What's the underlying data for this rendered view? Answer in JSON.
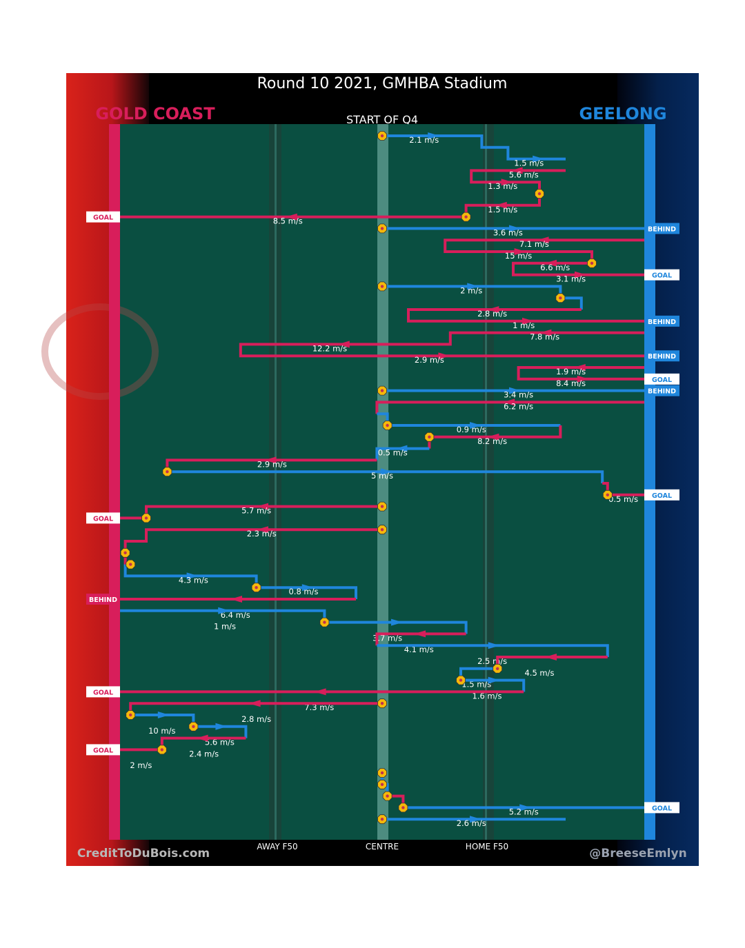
{
  "chart_data": {
    "type": "flow",
    "title": "Round 10 2021, GMHBA Stadium",
    "subtitle": "START OF Q4",
    "home_team": "GOLD COAST",
    "away_team": "GEELONG",
    "colors": {
      "gold_coast": "#d81e5b",
      "geelong": "#1f86dc",
      "field": "#0a4f41",
      "stoppage": "#f5b90a"
    },
    "x_axis": {
      "range": [
        0,
        100
      ],
      "labels": [
        "AWAY F50",
        "CENTRE",
        "HOME F50"
      ],
      "label_positions": [
        30,
        50,
        70
      ]
    },
    "sequences": [
      {
        "team": "geelong",
        "points": [
          [
            50,
            0
          ],
          [
            69,
            0
          ],
          [
            69,
            1
          ],
          [
            74,
            1
          ],
          [
            74,
            2
          ],
          [
            85,
            2
          ]
        ],
        "label": "2.1 m/s",
        "label_at": [
          58,
          0
        ],
        "extra_labels": [
          [
            "1.5 m/s",
            78,
            2
          ]
        ],
        "start": "stoppage"
      },
      {
        "team": "gold_coast",
        "points": [
          [
            85,
            3
          ],
          [
            67,
            3
          ],
          [
            67,
            4
          ],
          [
            80,
            4
          ],
          [
            80,
            5
          ]
        ],
        "label": "5.6 m/s",
        "label_at": [
          77,
          3
        ],
        "extra_labels": [
          [
            "1.3 m/s",
            73,
            4
          ]
        ],
        "end": "stoppage"
      },
      {
        "team": "gold_coast",
        "points": [
          [
            80,
            5
          ],
          [
            80,
            6
          ],
          [
            66,
            6
          ],
          [
            66,
            7
          ],
          [
            0,
            7
          ]
        ],
        "label": "1.5 m/s",
        "label_at": [
          73,
          6
        ],
        "extra_labels": [
          [
            "8.5 m/s",
            32,
            7
          ]
        ],
        "result": "GOAL"
      },
      {
        "team": "geelong",
        "points": [
          [
            50,
            8
          ],
          [
            100,
            8
          ]
        ],
        "label": "3.6 m/s",
        "label_at": [
          74,
          8
        ],
        "start": "stoppage",
        "result": "BEHIND"
      },
      {
        "team": "gold_coast",
        "points": [
          [
            100,
            9
          ],
          [
            62,
            9
          ],
          [
            62,
            10
          ],
          [
            90,
            10
          ],
          [
            90,
            11
          ]
        ],
        "label": "7.1 m/s",
        "label_at": [
          79,
          9
        ],
        "extra_labels": [
          [
            "15 m/s",
            76,
            10
          ]
        ],
        "end": "stoppage"
      },
      {
        "team": "gold_coast",
        "points": [
          [
            90,
            11
          ],
          [
            75,
            11
          ],
          [
            75,
            12
          ],
          [
            100,
            12
          ]
        ],
        "label": "6.6 m/s",
        "label_at": [
          83,
          11
        ],
        "extra_labels": [
          [
            "3.1 m/s",
            86,
            12
          ]
        ],
        "result": "GOAL",
        "result_team": "geelong"
      },
      {
        "team": "geelong",
        "points": [
          [
            50,
            13
          ],
          [
            84,
            13
          ],
          [
            84,
            14
          ],
          [
            88,
            14
          ],
          [
            88,
            15
          ]
        ],
        "label": "2 m/s",
        "label_at": [
          67,
          13
        ],
        "end": "stoppage_at_14"
      },
      {
        "team": "gold_coast",
        "points": [
          [
            88,
            15
          ],
          [
            55,
            15
          ],
          [
            55,
            16
          ],
          [
            100,
            16
          ]
        ],
        "label": "2.8 m/s",
        "label_at": [
          71,
          15
        ],
        "extra_labels": [
          [
            "1 m/s",
            77,
            16
          ]
        ],
        "result": "BEHIND",
        "result_team": "geelong"
      },
      {
        "team": "gold_coast",
        "points": [
          [
            100,
            17
          ],
          [
            63,
            17
          ],
          [
            63,
            18
          ],
          [
            23,
            18
          ],
          [
            23,
            19
          ],
          [
            100,
            19
          ]
        ],
        "label": "7.8 m/s",
        "label_at": [
          81,
          17
        ],
        "extra_labels": [
          [
            "12.2 m/s",
            40,
            18
          ],
          [
            "2.9 m/s",
            59,
            19
          ]
        ],
        "result": "BEHIND",
        "result_team": "geelong"
      },
      {
        "team": "gold_coast",
        "points": [
          [
            100,
            20
          ],
          [
            76,
            20
          ],
          [
            76,
            21
          ],
          [
            100,
            21
          ]
        ],
        "label": "1.9 m/s",
        "label_at": [
          86,
          20
        ],
        "extra_labels": [
          [
            "8.4 m/s",
            86,
            21
          ]
        ],
        "result": "GOAL",
        "result_team": "geelong"
      },
      {
        "team": "geelong",
        "points": [
          [
            50,
            22
          ],
          [
            100,
            22
          ]
        ],
        "label": "3.4 m/s",
        "label_at": [
          76,
          22
        ],
        "start": "stoppage",
        "result": "BEHIND"
      },
      {
        "team": "gold_coast",
        "points": [
          [
            100,
            23
          ],
          [
            49,
            23
          ],
          [
            49,
            24
          ]
        ],
        "label": "6.2 m/s",
        "label_at": [
          76,
          23
        ]
      },
      {
        "team": "geelong",
        "points": [
          [
            49,
            24
          ],
          [
            51,
            24
          ],
          [
            51,
            25
          ],
          [
            84,
            25
          ]
        ],
        "label": "0.9 m/s",
        "label_at": [
          67,
          25
        ],
        "start": "stoppage_at_25"
      },
      {
        "team": "gold_coast",
        "points": [
          [
            84,
            25
          ],
          [
            84,
            26
          ],
          [
            59,
            26
          ],
          [
            59,
            27
          ]
        ],
        "label": "8.2 m/s",
        "label_at": [
          71,
          26
        ],
        "end": "stoppage"
      },
      {
        "team": "geelong",
        "points": [
          [
            59,
            27
          ],
          [
            49,
            27
          ],
          [
            49,
            28
          ]
        ],
        "label": "0.5 m/s",
        "label_at": [
          52,
          27
        ]
      },
      {
        "team": "gold_coast",
        "points": [
          [
            49,
            28
          ],
          [
            9,
            28
          ],
          [
            9,
            29
          ]
        ],
        "label": "2.9 m/s",
        "label_at": [
          29,
          28
        ],
        "end": "stoppage"
      },
      {
        "team": "geelong",
        "points": [
          [
            9,
            29
          ],
          [
            92,
            29
          ],
          [
            92,
            30
          ]
        ],
        "label": "5 m/s",
        "label_at": [
          50,
          29
        ]
      },
      {
        "team": "gold_coast",
        "points": [
          [
            92,
            30
          ],
          [
            93,
            30
          ],
          [
            93,
            31
          ],
          [
            100,
            31
          ]
        ],
        "label": "0.5 m/s",
        "label_at": [
          96,
          31
        ],
        "start": "stoppage_at_31",
        "result": "GOAL",
        "result_team": "geelong"
      },
      {
        "team": "gold_coast",
        "points": [
          [
            50,
            32
          ],
          [
            5,
            32
          ],
          [
            5,
            33
          ],
          [
            0,
            33
          ]
        ],
        "label": "5.7 m/s",
        "label_at": [
          26,
          32
        ],
        "start": "stoppage",
        "end": "stoppage_at_33",
        "result": "GOAL"
      },
      {
        "team": "gold_coast",
        "points": [
          [
            50,
            34
          ],
          [
            5,
            34
          ],
          [
            5,
            35
          ],
          [
            1,
            35
          ],
          [
            1,
            36
          ]
        ],
        "label": "2.3 m/s",
        "label_at": [
          27,
          34
        ],
        "start": "stoppage",
        "end": "stoppage_at_36"
      },
      {
        "team": "gold_coast",
        "points": [
          [
            1,
            36
          ],
          [
            1,
            37
          ],
          [
            2,
            37
          ]
        ],
        "label": "",
        "label_at": [
          0,
          0
        ],
        "end": "stoppage_at_37"
      },
      {
        "team": "geelong",
        "points": [
          [
            1,
            37
          ],
          [
            1,
            38
          ],
          [
            26,
            38
          ],
          [
            26,
            39
          ]
        ],
        "label": "4.3 m/s",
        "label_at": [
          14,
          38
        ],
        "end": "stoppage_at_39"
      },
      {
        "team": "geelong",
        "points": [
          [
            26,
            39
          ],
          [
            45,
            39
          ],
          [
            45,
            40
          ]
        ],
        "label": "0.8 m/s",
        "label_at": [
          35,
          39
        ]
      },
      {
        "team": "gold_coast",
        "points": [
          [
            45,
            40
          ],
          [
            0,
            40
          ]
        ],
        "label": "6.4 m/s",
        "label_at": [
          22,
          41
        ],
        "result": "BEHIND"
      },
      {
        "team": "geelong",
        "points": [
          [
            0,
            41
          ],
          [
            39,
            41
          ],
          [
            39,
            42
          ]
        ],
        "label": "1 m/s",
        "label_at": [
          20,
          42
        ],
        "end": "stoppage_at_42"
      },
      {
        "team": "geelong",
        "points": [
          [
            39,
            42
          ],
          [
            66,
            42
          ],
          [
            66,
            43
          ]
        ],
        "label": "3.7 m/s",
        "label_at": [
          51,
          43
        ]
      },
      {
        "team": "gold_coast",
        "points": [
          [
            66,
            43
          ],
          [
            49,
            43
          ],
          [
            49,
            44
          ]
        ],
        "label": "4.1 m/s",
        "label_at": [
          57,
          44
        ]
      },
      {
        "team": "geelong",
        "points": [
          [
            49,
            44
          ],
          [
            93,
            44
          ],
          [
            93,
            45
          ]
        ],
        "label": "2.5 m/s",
        "label_at": [
          71,
          45
        ]
      },
      {
        "team": "gold_coast",
        "points": [
          [
            93,
            45
          ],
          [
            72,
            45
          ],
          [
            72,
            46
          ]
        ],
        "label": "4.5 m/s",
        "label_at": [
          80,
          46
        ],
        "end": "stoppage_at_46"
      },
      {
        "team": "geelong",
        "points": [
          [
            72,
            46
          ],
          [
            65,
            46
          ],
          [
            65,
            47
          ]
        ],
        "label": "1.5 m/s",
        "label_at": [
          68,
          47
        ],
        "end": "stoppage_at_47"
      },
      {
        "team": "geelong",
        "points": [
          [
            65,
            47
          ],
          [
            77,
            47
          ],
          [
            77,
            48
          ]
        ],
        "label": "1.6 m/s",
        "label_at": [
          70,
          48
        ]
      },
      {
        "team": "gold_coast",
        "points": [
          [
            77,
            48
          ],
          [
            0,
            48
          ]
        ],
        "label": "7.3 m/s",
        "label_at": [
          38,
          49
        ],
        "result": "GOAL"
      },
      {
        "team": "gold_coast",
        "points": [
          [
            50,
            49
          ],
          [
            2,
            49
          ],
          [
            2,
            50
          ]
        ],
        "label": "2.8 m/s",
        "label_at": [
          26,
          50
        ],
        "start": "stoppage",
        "end": "stoppage_at_50"
      },
      {
        "team": "geelong",
        "points": [
          [
            2,
            50
          ],
          [
            14,
            50
          ],
          [
            14,
            51
          ]
        ],
        "label": "10 m/s",
        "label_at": [
          8,
          51
        ],
        "end": "stoppage_at_51"
      },
      {
        "team": "geelong",
        "points": [
          [
            14,
            51
          ],
          [
            24,
            51
          ],
          [
            24,
            52
          ]
        ],
        "label": "5.6 m/s",
        "label_at": [
          19,
          52
        ]
      },
      {
        "team": "gold_coast",
        "points": [
          [
            24,
            52
          ],
          [
            8,
            52
          ],
          [
            8,
            53
          ]
        ],
        "label": "2.4 m/s",
        "label_at": [
          16,
          53
        ],
        "end": "stoppage_at_53"
      },
      {
        "team": "gold_coast",
        "points": [
          [
            8,
            53
          ],
          [
            0,
            53
          ]
        ],
        "label": "2 m/s",
        "label_at": [
          4,
          54
        ],
        "result": "GOAL"
      },
      {
        "team": "geelong",
        "points": [
          [
            50,
            55
          ],
          [
            50,
            56
          ],
          [
            51,
            56
          ],
          [
            51,
            57
          ]
        ],
        "label": "",
        "label_at": [
          0,
          0
        ],
        "start": "stoppage_at_55"
      },
      {
        "team": "gold_coast",
        "points": [
          [
            51,
            57
          ],
          [
            54,
            57
          ],
          [
            54,
            58
          ]
        ],
        "label": "",
        "label_at": [
          0,
          0
        ],
        "start": "stoppage_at_57"
      },
      {
        "team": "geelong",
        "points": [
          [
            54,
            58
          ],
          [
            100,
            58
          ]
        ],
        "label": "5.2 m/s",
        "label_at": [
          77,
          58
        ],
        "start": "stoppage_at_58",
        "result": "GOAL"
      },
      {
        "team": "geelong",
        "points": [
          [
            50,
            59
          ],
          [
            85,
            59
          ]
        ],
        "label": "2.6 m/s",
        "label_at": [
          67,
          59
        ],
        "start": "stoppage"
      }
    ],
    "stoppages": [
      [
        50,
        0
      ],
      [
        80,
        5
      ],
      [
        66,
        7
      ],
      [
        50,
        8
      ],
      [
        90,
        11
      ],
      [
        50,
        13
      ],
      [
        84,
        14
      ],
      [
        50,
        22
      ],
      [
        51,
        25
      ],
      [
        59,
        26
      ],
      [
        9,
        29
      ],
      [
        93,
        31
      ],
      [
        50,
        32
      ],
      [
        5,
        33
      ],
      [
        50,
        34
      ],
      [
        1,
        36
      ],
      [
        2,
        37
      ],
      [
        26,
        39
      ],
      [
        39,
        42
      ],
      [
        72,
        46
      ],
      [
        65,
        47
      ],
      [
        50,
        49
      ],
      [
        2,
        50
      ],
      [
        14,
        51
      ],
      [
        8,
        53
      ],
      [
        50,
        55
      ],
      [
        50,
        56
      ],
      [
        51,
        57
      ],
      [
        54,
        58
      ],
      [
        50,
        59
      ]
    ]
  },
  "credit_left": "CreditToDuBois.com",
  "credit_right": "@BreeseEmlyn"
}
